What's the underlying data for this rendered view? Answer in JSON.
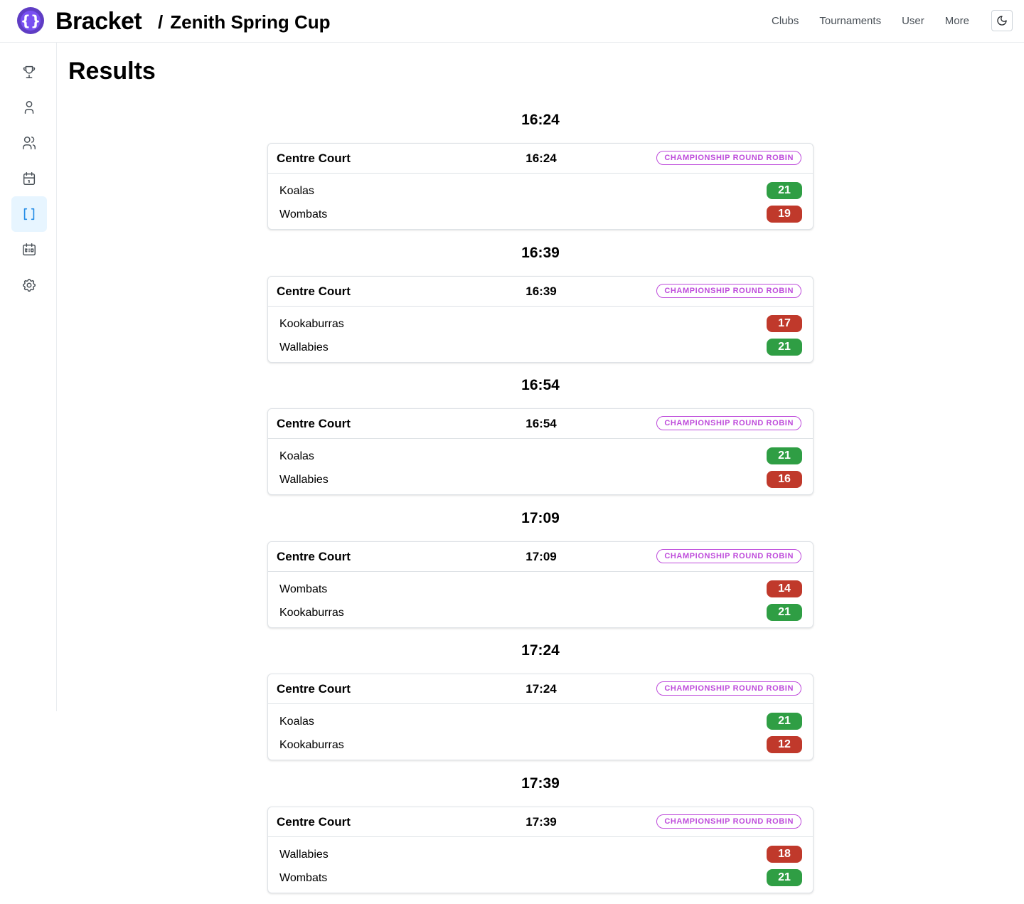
{
  "header": {
    "brand": "Bracket",
    "breadcrumb_sep": "/",
    "tournament": "Zenith Spring Cup",
    "nav": [
      "Clubs",
      "Tournaments",
      "User",
      "More"
    ],
    "accent": "#5f3dc4"
  },
  "sidebar": {
    "items": [
      {
        "icon": "trophy-icon",
        "active": false
      },
      {
        "icon": "user-icon",
        "active": false
      },
      {
        "icon": "users-icon",
        "active": false
      },
      {
        "icon": "calendar-icon",
        "active": false
      },
      {
        "icon": "brackets-icon",
        "active": true
      },
      {
        "icon": "scoreboard-icon",
        "active": false
      },
      {
        "icon": "gear-icon",
        "active": false
      }
    ]
  },
  "page": {
    "title": "Results"
  },
  "colors": {
    "win": "#2f9e44",
    "loss": "#c0392b",
    "badge": "#be4bdb",
    "active": "#228be6"
  },
  "results": [
    {
      "time": "16:24",
      "court": "Centre Court",
      "stage": "CHAMPIONSHIP ROUND ROBIN",
      "teams": [
        {
          "name": "Koalas",
          "score": "21",
          "won": true
        },
        {
          "name": "Wombats",
          "score": "19",
          "won": false
        }
      ]
    },
    {
      "time": "16:39",
      "court": "Centre Court",
      "stage": "CHAMPIONSHIP ROUND ROBIN",
      "teams": [
        {
          "name": "Kookaburras",
          "score": "17",
          "won": false
        },
        {
          "name": "Wallabies",
          "score": "21",
          "won": true
        }
      ]
    },
    {
      "time": "16:54",
      "court": "Centre Court",
      "stage": "CHAMPIONSHIP ROUND ROBIN",
      "teams": [
        {
          "name": "Koalas",
          "score": "21",
          "won": true
        },
        {
          "name": "Wallabies",
          "score": "16",
          "won": false
        }
      ]
    },
    {
      "time": "17:09",
      "court": "Centre Court",
      "stage": "CHAMPIONSHIP ROUND ROBIN",
      "teams": [
        {
          "name": "Wombats",
          "score": "14",
          "won": false
        },
        {
          "name": "Kookaburras",
          "score": "21",
          "won": true
        }
      ]
    },
    {
      "time": "17:24",
      "court": "Centre Court",
      "stage": "CHAMPIONSHIP ROUND ROBIN",
      "teams": [
        {
          "name": "Koalas",
          "score": "21",
          "won": true
        },
        {
          "name": "Kookaburras",
          "score": "12",
          "won": false
        }
      ]
    },
    {
      "time": "17:39",
      "court": "Centre Court",
      "stage": "CHAMPIONSHIP ROUND ROBIN",
      "teams": [
        {
          "name": "Wallabies",
          "score": "18",
          "won": false
        },
        {
          "name": "Wombats",
          "score": "21",
          "won": true
        }
      ]
    }
  ]
}
